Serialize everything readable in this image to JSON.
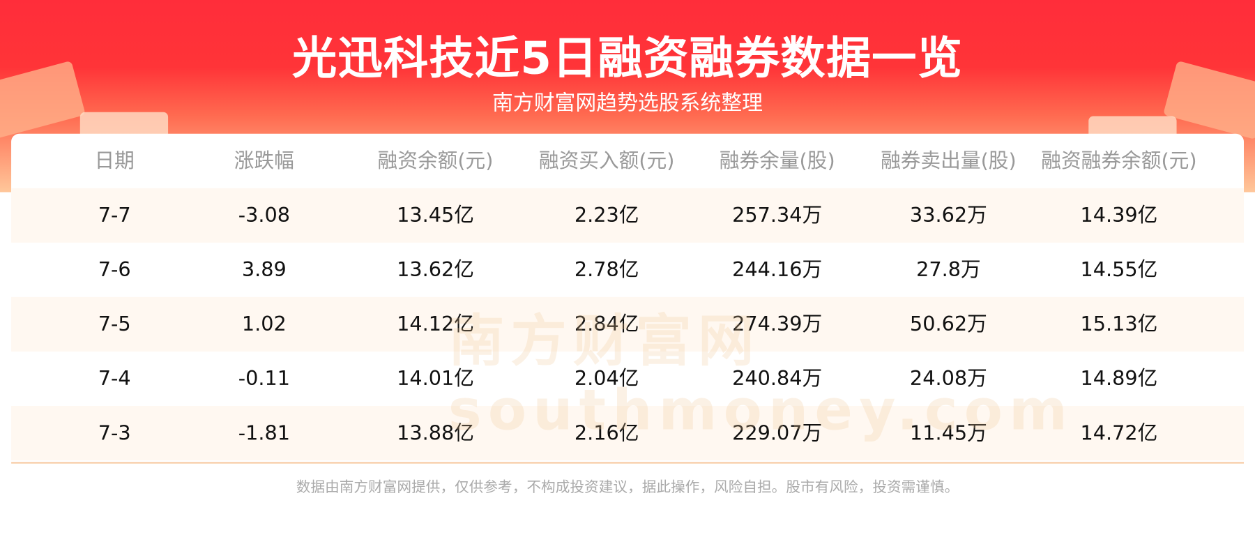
{
  "header": {
    "title": "光迅科技近5日融资融券数据一览",
    "subtitle": "南方财富网趋势选股系统整理"
  },
  "colors": {
    "accent": "#ff2d3a",
    "row_alt": "#fff8f1"
  },
  "table": {
    "columns": [
      "日期",
      "涨跌幅",
      "融资余额(元)",
      "融资买入额(元)",
      "融券余量(股)",
      "融券卖出量(股)",
      "融资融券余额(元)"
    ],
    "rows": [
      [
        "7-7",
        "-3.08",
        "13.45亿",
        "2.23亿",
        "257.34万",
        "33.62万",
        "14.39亿"
      ],
      [
        "7-6",
        "3.89",
        "13.62亿",
        "2.78亿",
        "244.16万",
        "27.8万",
        "14.55亿"
      ],
      [
        "7-5",
        "1.02",
        "14.12亿",
        "2.84亿",
        "274.39万",
        "50.62万",
        "15.13亿"
      ],
      [
        "7-4",
        "-0.11",
        "14.01亿",
        "2.04亿",
        "240.84万",
        "24.08万",
        "14.89亿"
      ],
      [
        "7-3",
        "-1.81",
        "13.88亿",
        "2.16亿",
        "229.07万",
        "11.45万",
        "14.72亿"
      ]
    ]
  },
  "watermark": "南方财富网 southmoney.com",
  "footer": "数据由南方财富网提供，仅供参考，不构成投资建议，据此操作，风险自担。股市有风险，投资需谨慎。"
}
